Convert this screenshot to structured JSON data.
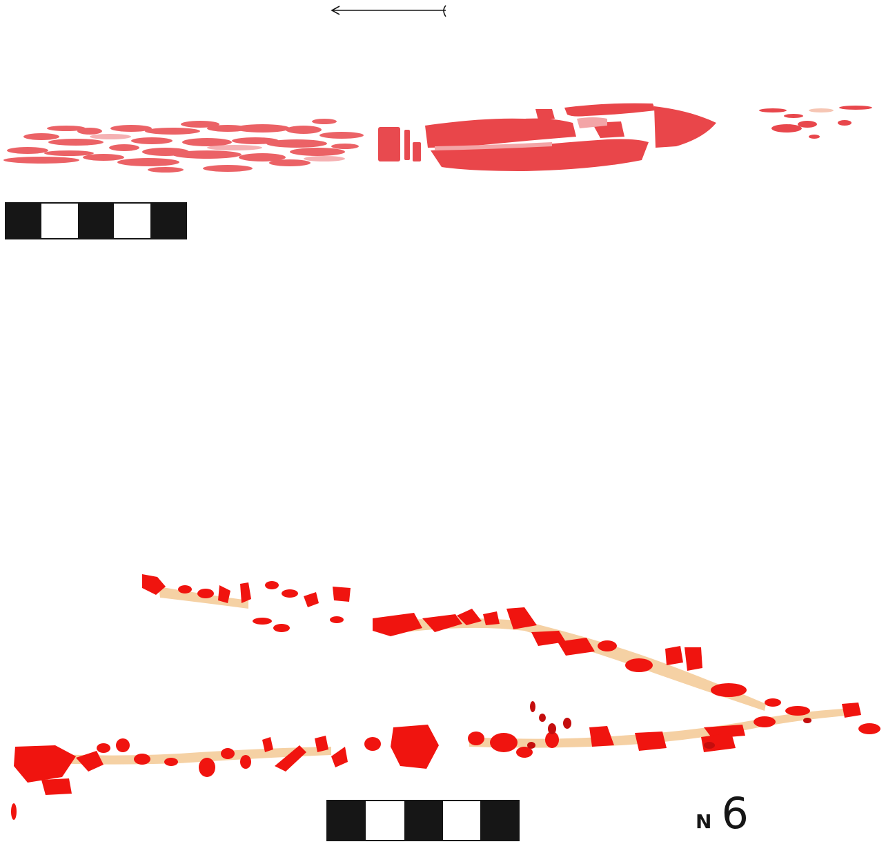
{
  "plate": {
    "label_letter": "N",
    "label_number": "6"
  },
  "colors": {
    "paper": "#ffffff",
    "upper_red": "#e8474c",
    "upper_light": "#f29da0",
    "upper_dark": "#d9343b",
    "lower_red": "#f0140f",
    "lower_dark": "#c40d0d",
    "lower_ochre": "#f3c58d",
    "ink": "#161616"
  },
  "icons": {
    "direction_arrow": "left-arrow-icon",
    "scale_bar": "scale-bar-icon"
  }
}
